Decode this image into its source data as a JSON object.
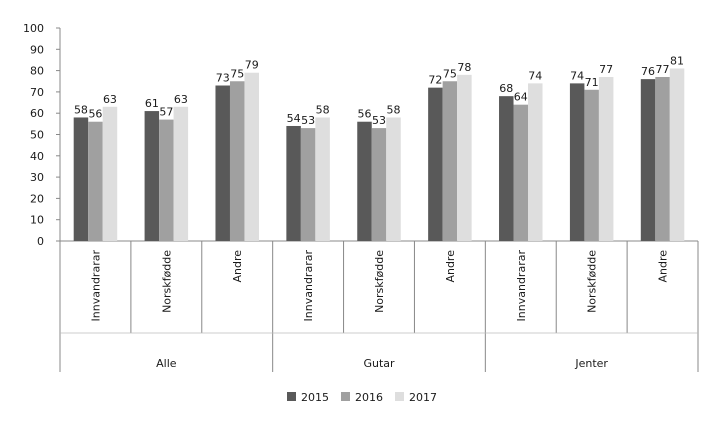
{
  "chart_data": {
    "type": "bar",
    "ylim": [
      0,
      100
    ],
    "yticks": [
      "0",
      "10",
      "20",
      "30",
      "40",
      "50",
      "60",
      "70",
      "80",
      "90",
      "100"
    ],
    "groups": [
      "Alle",
      "Gutar",
      "Jenter"
    ],
    "categories": [
      "Innvandrarar",
      "Norskfødde",
      "Andre"
    ],
    "series": [
      {
        "name": "2015",
        "color": "#595959",
        "values": [
          [
            58,
            61,
            73
          ],
          [
            54,
            56,
            72
          ],
          [
            68,
            74,
            76
          ]
        ]
      },
      {
        "name": "2016",
        "color": "#a0a0a0",
        "values": [
          [
            56,
            57,
            75
          ],
          [
            53,
            53,
            75
          ],
          [
            64,
            71,
            77
          ]
        ]
      },
      {
        "name": "2017",
        "color": "#dedede",
        "values": [
          [
            63,
            63,
            79
          ],
          [
            58,
            58,
            78
          ],
          [
            74,
            77,
            81
          ]
        ]
      }
    ],
    "legend_position": "bottom",
    "grid": false
  }
}
